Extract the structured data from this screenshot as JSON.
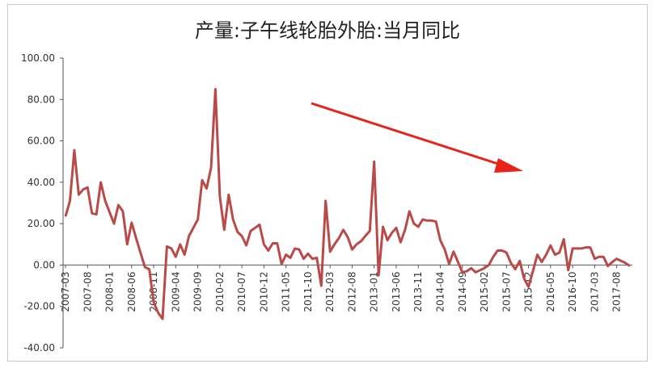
{
  "chart_data": {
    "type": "line",
    "title": "产量:子午线轮胎外胎:当月同比",
    "xlabel": "",
    "ylabel": "",
    "ylim": [
      -40,
      100
    ],
    "ytick_labels": [
      "100.00",
      "80.00",
      "60.00",
      "40.00",
      "20.00",
      "0.00",
      "-20.00",
      "-40.00"
    ],
    "grid": false,
    "legend": "none",
    "line_color": "#b94a48",
    "annotation": {
      "type": "red-arrow",
      "color": "#e8231a",
      "direction": "down-right"
    },
    "x_tick_labels": [
      "2007-03",
      "2007-08",
      "2008-01",
      "2008-06",
      "2008-11",
      "2009-04",
      "2009-09",
      "2010-02",
      "2010-07",
      "2010-12",
      "2011-05",
      "2011-10",
      "2012-03",
      "2012-08",
      "2013-01",
      "2013-06",
      "2013-11",
      "2014-04",
      "2014-09",
      "2015-02",
      "2015-07",
      "2015-12",
      "2016-05",
      "2016-10",
      "2017-03",
      "2017-08"
    ],
    "x": [
      "2007-03",
      "2007-04",
      "2007-05",
      "2007-06",
      "2007-07",
      "2007-08",
      "2007-09",
      "2007-10",
      "2007-11",
      "2007-12",
      "2008-01",
      "2008-02",
      "2008-03",
      "2008-04",
      "2008-05",
      "2008-06",
      "2008-07",
      "2008-08",
      "2008-09",
      "2008-10",
      "2008-11",
      "2008-12",
      "2009-01",
      "2009-02",
      "2009-03",
      "2009-04",
      "2009-05",
      "2009-06",
      "2009-07",
      "2009-08",
      "2009-09",
      "2009-10",
      "2009-11",
      "2009-12",
      "2010-01",
      "2010-02",
      "2010-03",
      "2010-04",
      "2010-05",
      "2010-06",
      "2010-07",
      "2010-08",
      "2010-09",
      "2010-10",
      "2010-11",
      "2010-12",
      "2011-01",
      "2011-02",
      "2011-03",
      "2011-04",
      "2011-05",
      "2011-06",
      "2011-07",
      "2011-08",
      "2011-09",
      "2011-10",
      "2011-11",
      "2011-12",
      "2012-01",
      "2012-02",
      "2012-03",
      "2012-04",
      "2012-05",
      "2012-06",
      "2012-07",
      "2012-08",
      "2012-09",
      "2012-10",
      "2012-11",
      "2012-12",
      "2013-01",
      "2013-02",
      "2013-03",
      "2013-04",
      "2013-05",
      "2013-06",
      "2013-07",
      "2013-08",
      "2013-09",
      "2013-10",
      "2013-11",
      "2013-12",
      "2014-01",
      "2014-02",
      "2014-03",
      "2014-04",
      "2014-05",
      "2014-06",
      "2014-07",
      "2014-08",
      "2014-09",
      "2014-10",
      "2014-11",
      "2014-12",
      "2015-01",
      "2015-02",
      "2015-03",
      "2015-04",
      "2015-05",
      "2015-06",
      "2015-07",
      "2015-08",
      "2015-09",
      "2015-10",
      "2015-11",
      "2015-12",
      "2016-01",
      "2016-02",
      "2016-03",
      "2016-04",
      "2016-05",
      "2016-06",
      "2016-07",
      "2016-08",
      "2016-09",
      "2016-10",
      "2016-11",
      "2016-12",
      "2017-01",
      "2017-02",
      "2017-03",
      "2017-04",
      "2017-05",
      "2017-06",
      "2017-07",
      "2017-08",
      "2017-09",
      "2017-10",
      "2017-11"
    ],
    "series": [
      {
        "values": [
          23.5,
          31,
          55.5,
          34,
          36.5,
          37.5,
          25,
          24.5,
          40,
          31,
          25.5,
          20,
          29,
          26,
          10,
          20.5,
          13,
          6,
          -1,
          -2,
          -18,
          -23,
          -26,
          9,
          8,
          4,
          10,
          5,
          14,
          18,
          22,
          41,
          37,
          47,
          85,
          33,
          17,
          34,
          22,
          16,
          14,
          9.5,
          16.5,
          18,
          19.5,
          10,
          7,
          10.5,
          10.5,
          0.5,
          5,
          3.5,
          8,
          7.5,
          3,
          5.5,
          3,
          3.5,
          -10,
          31,
          6.5,
          10,
          13,
          17,
          13.5,
          7.5,
          10,
          11.5,
          14,
          16.5,
          50,
          -5,
          18.5,
          12,
          15.5,
          18,
          11,
          17,
          26,
          20,
          18.5,
          22,
          21.5,
          21.5,
          21,
          12,
          7.5,
          0.5,
          6.5,
          1.5,
          -3.5,
          -3,
          -1.5,
          -3.5,
          -2.5,
          -1.5,
          0,
          4,
          7,
          7,
          6,
          1,
          -2,
          2,
          -6.5,
          -10.5,
          -3,
          5,
          1.5,
          5,
          9.5,
          5,
          6,
          12.5,
          -2.5,
          8,
          8,
          8,
          8.5,
          8.5,
          3,
          4,
          4,
          -0.5,
          1.5,
          3,
          2,
          1,
          -0.5
        ]
      }
    ]
  }
}
